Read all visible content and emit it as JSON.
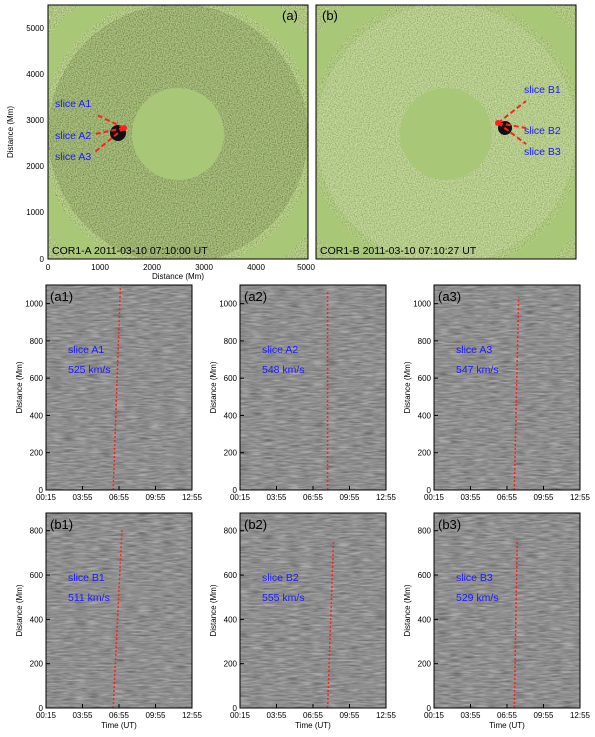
{
  "top_panels": [
    {
      "label": "(a)",
      "caption": "COR1-A 2011-03-10 07:10:00 UT",
      "slices": [
        "slice A1",
        "slice A2",
        "slice A3"
      ],
      "slice_side": "left",
      "xlabel": "Distance (Mm)",
      "ylabel": "Distance (Mm)",
      "xticks": [
        "0",
        "1000",
        "2000",
        "3000",
        "4000",
        "5000"
      ],
      "yticks": [
        "0",
        "1000",
        "2000",
        "3000",
        "4000",
        "5000"
      ],
      "xlim": [
        0,
        5000
      ],
      "ylim": [
        0,
        5500
      ]
    },
    {
      "label": "(b)",
      "caption": "COR1-B 2011-03-10 07:10:27 UT",
      "slices": [
        "slice B1",
        "slice B2",
        "slice B3"
      ],
      "slice_side": "right",
      "xlabel": "",
      "ylabel": "",
      "xticks": [],
      "yticks": [],
      "xlim": [
        0,
        5000
      ],
      "ylim": [
        0,
        5500
      ]
    }
  ],
  "time_distance_panels": [
    {
      "label": "(a1)",
      "slice": "slice A1",
      "speed": "525 km/s"
    },
    {
      "label": "(a2)",
      "slice": "slice A2",
      "speed": "548 km/s"
    },
    {
      "label": "(a3)",
      "slice": "slice A3",
      "speed": "547 km/s"
    },
    {
      "label": "(b1)",
      "slice": "slice B1",
      "speed": "511 km/s"
    },
    {
      "label": "(b2)",
      "slice": "slice B2",
      "speed": "555 km/s"
    },
    {
      "label": "(b3)",
      "slice": "slice B3",
      "speed": "529 km/s"
    }
  ],
  "axes": {
    "distance_label": "Distance (Mm)",
    "time_label": "Time (UT)",
    "time_ticks": [
      "00:15",
      "03:55",
      "06:55",
      "09:55",
      "12:55"
    ],
    "row_a_yticks": [
      "0",
      "200",
      "400",
      "600",
      "800",
      "1000"
    ],
    "row_b_yticks": [
      "0",
      "200",
      "400",
      "600",
      "800"
    ]
  },
  "colors": {
    "slice_text": "#1a1aff",
    "fit_line": "#ff2020",
    "coronagraph_bg": "#a8c878"
  }
}
